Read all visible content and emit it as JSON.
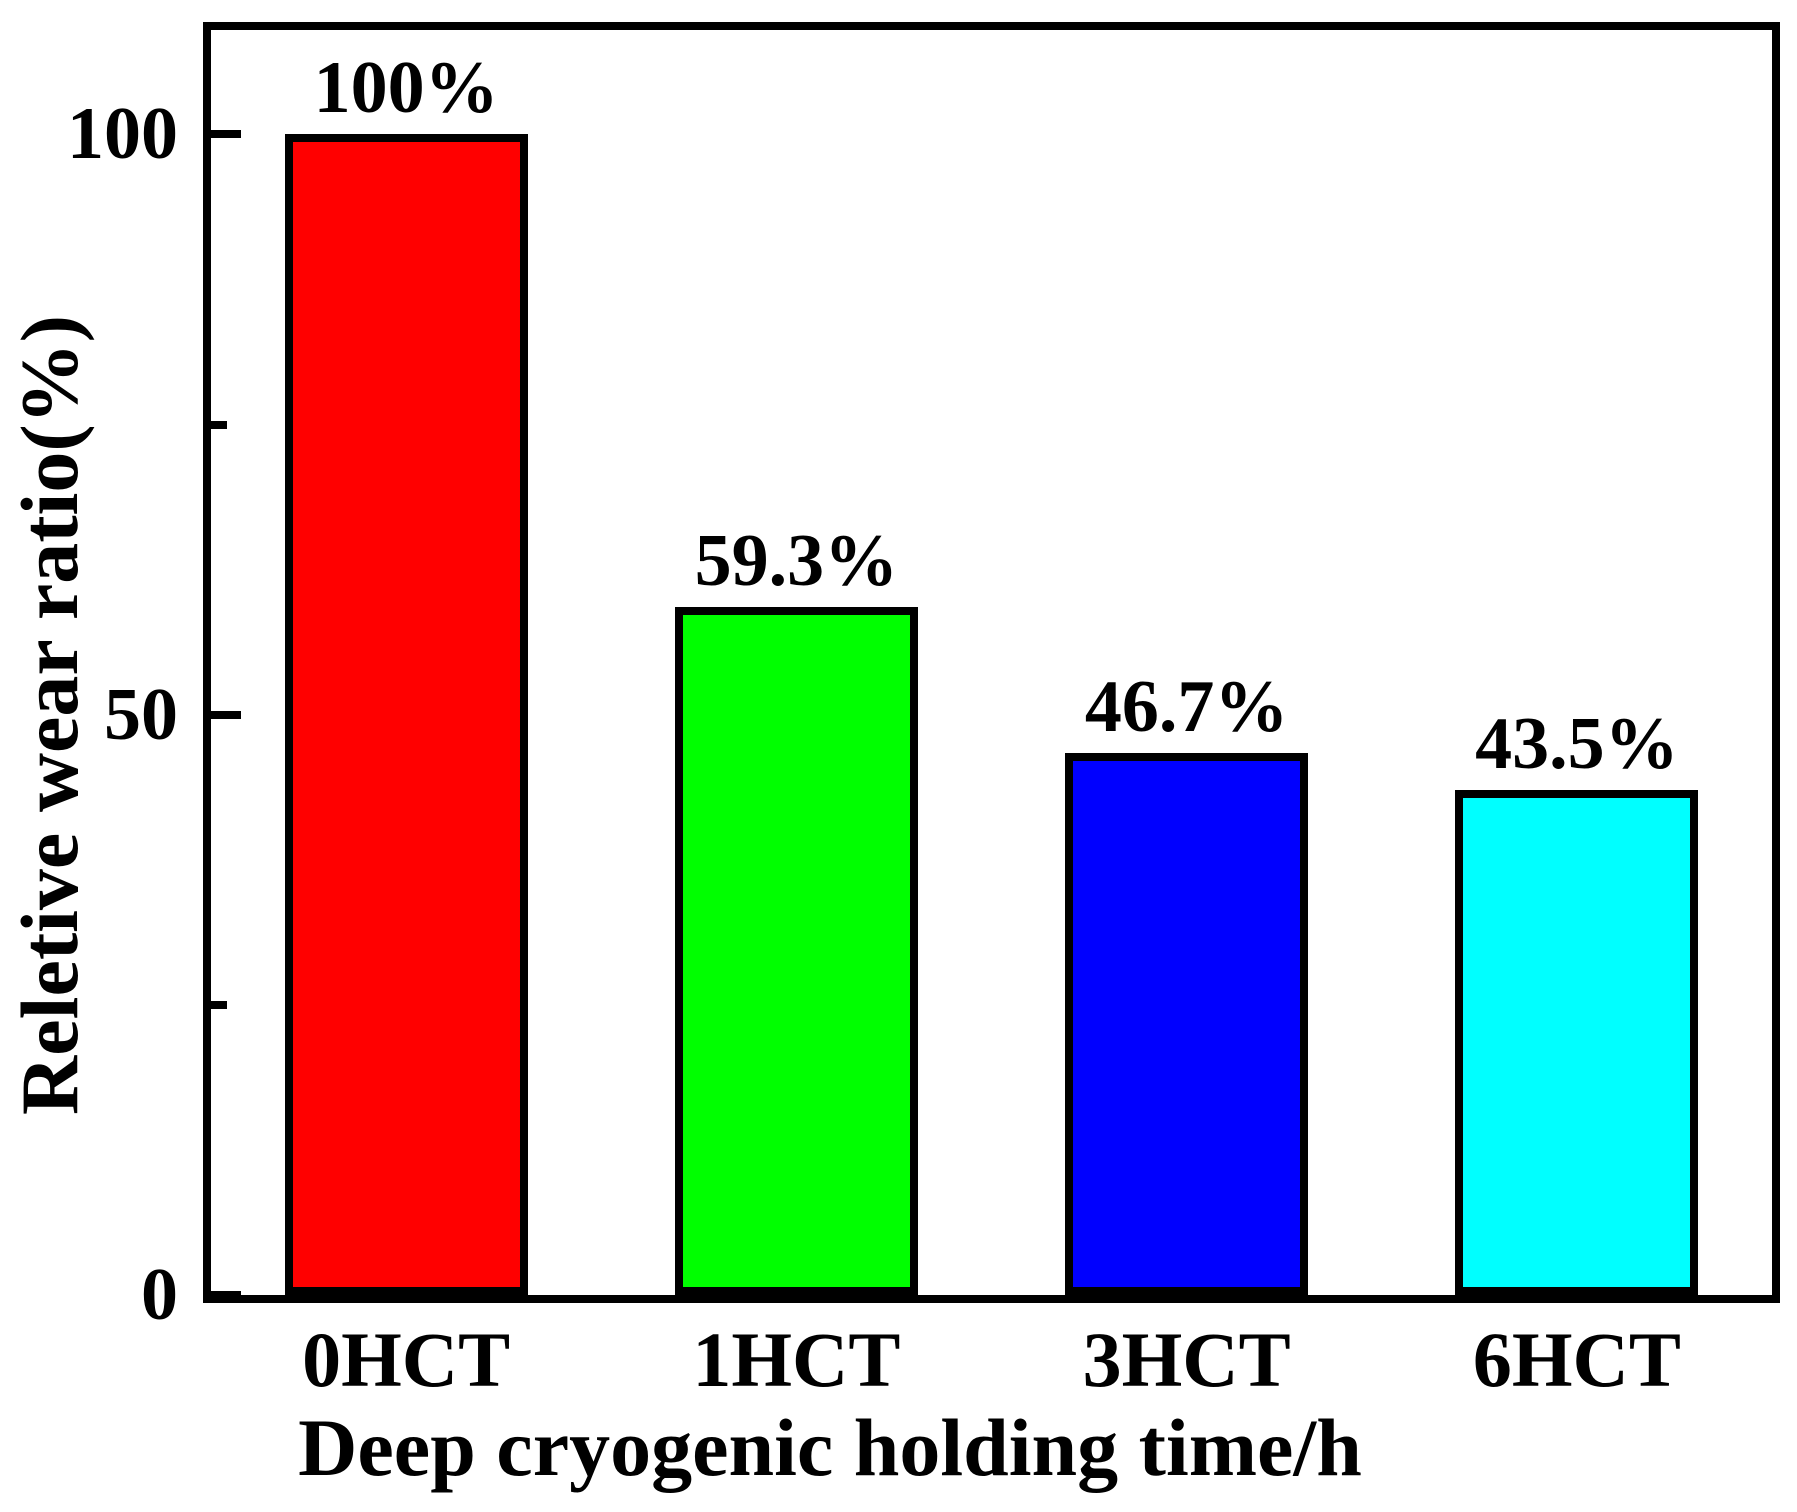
{
  "chart_data": {
    "type": "bar",
    "title": "",
    "xlabel": "Deep cryogenic holding time/h",
    "ylabel": "Reletive wear ratio(%)",
    "categories": [
      "0HCT",
      "1HCT",
      "3HCT",
      "6HCT"
    ],
    "values": [
      100,
      59.3,
      46.7,
      43.5
    ],
    "bar_labels": [
      "100%",
      "59.3%",
      "46.7%",
      "43.5%"
    ],
    "bar_colors": [
      "#ff0000",
      "#00ff00",
      "#0000ff",
      "#00ffff"
    ],
    "bar_border_color": "#000000",
    "axis_color": "#000000",
    "background_color": "#ffffff",
    "ylim": [
      0,
      109
    ],
    "yticks_major": [
      {
        "value": 0,
        "label": "0"
      },
      {
        "value": 50,
        "label": "50"
      },
      {
        "value": 100,
        "label": "100"
      }
    ],
    "yticks_minor": [
      25,
      75
    ],
    "grid": false,
    "legend": "none",
    "tick_direction": "in"
  }
}
